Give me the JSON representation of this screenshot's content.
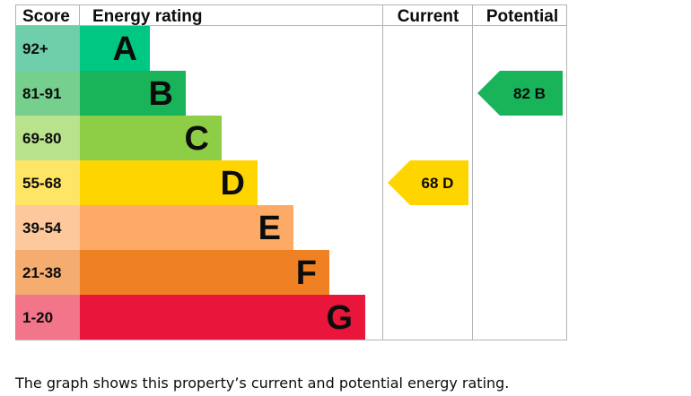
{
  "headers": {
    "score": "Score",
    "rating": "Energy rating",
    "current": "Current",
    "potential": "Potential"
  },
  "caption": "The graph shows this property’s current and potential energy rating.",
  "chart_data": {
    "type": "bar",
    "categories": [
      "A",
      "B",
      "C",
      "D",
      "E",
      "F",
      "G"
    ],
    "score_ranges": [
      "92+",
      "81-91",
      "69-80",
      "55-68",
      "39-54",
      "21-38",
      "1-20"
    ],
    "band_colors": [
      "#00c781",
      "#19b459",
      "#8dce46",
      "#ffd500",
      "#fcaa65",
      "#ef8023",
      "#e9153b"
    ],
    "score_cell_colors": [
      "#6fcfab",
      "#76cf8c",
      "#b9e28d",
      "#ffe566",
      "#fdc89c",
      "#f4ac6f",
      "#f27589"
    ],
    "current": {
      "value": 68,
      "band": "D",
      "label": "68 D"
    },
    "potential": {
      "value": 82,
      "band": "B",
      "label": "82 B"
    }
  }
}
